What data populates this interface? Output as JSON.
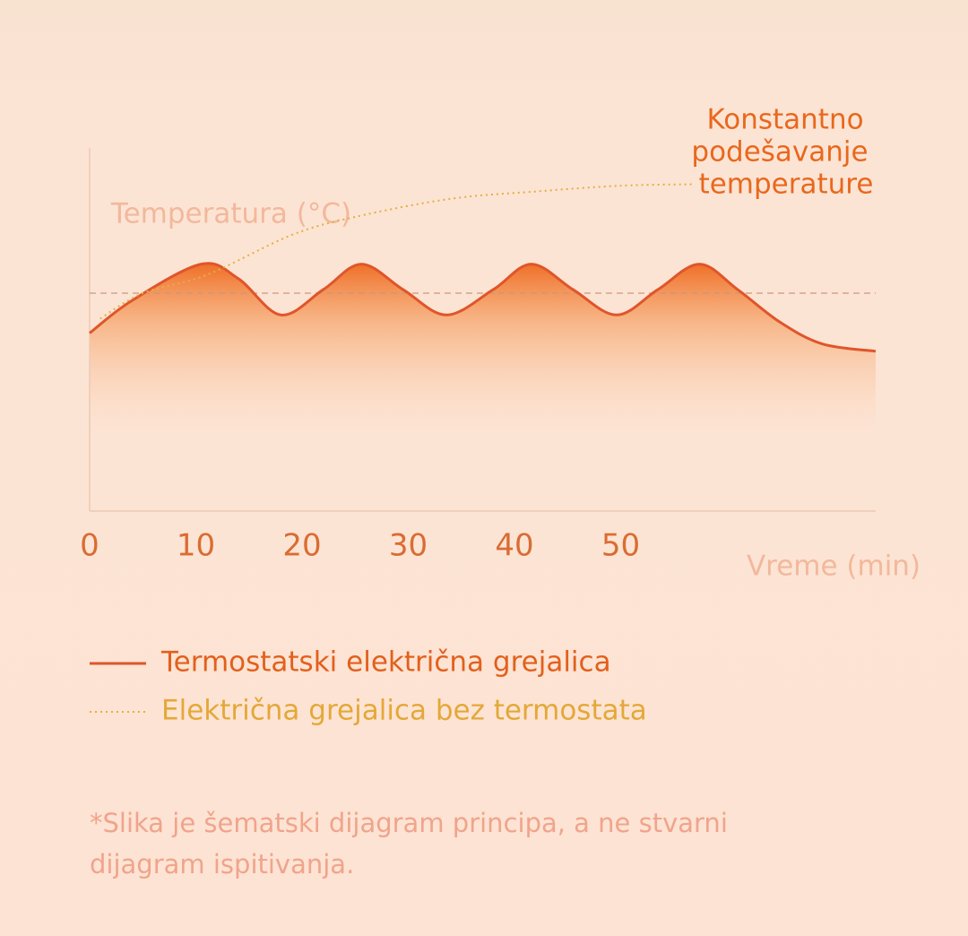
{
  "chart_data": {
    "type": "line",
    "y_label": "Temperatura (°C)",
    "x_label": "Vreme (min)",
    "annotation": [
      "Konstantno",
      "podešavanje",
      "temperature"
    ],
    "footnote": "*Slika je šematski dijagram principa, a ne stvarni dijagram ispitivanja.",
    "xlim": [
      0,
      74
    ],
    "xticks": [
      0,
      10,
      20,
      30,
      40,
      50
    ],
    "ylim": [
      0,
      100
    ],
    "reference_line": 60,
    "series": [
      {
        "name": "Termostatski električna grejalica",
        "color": "#e0552a",
        "dash": "solid",
        "x": [
          0,
          4,
          10.5,
          14,
          18,
          22,
          25.6,
          29.5,
          33.6,
          38,
          41.6,
          45.5,
          49.6,
          53.5,
          57.4,
          61,
          65,
          69,
          74
        ],
        "values": [
          49,
          58,
          68,
          64,
          54,
          61,
          68,
          61,
          54,
          61,
          68,
          61,
          54,
          61,
          68,
          61,
          52,
          46,
          44
        ]
      },
      {
        "name": "Električna grejalica bez termostata",
        "color": "#e2b040",
        "dash": "dotted",
        "x": [
          1,
          5,
          11,
          19,
          25,
          34,
          42,
          50,
          57
        ],
        "values": [
          53,
          60,
          65,
          76,
          81,
          86,
          88,
          89.6,
          90
        ]
      }
    ]
  }
}
